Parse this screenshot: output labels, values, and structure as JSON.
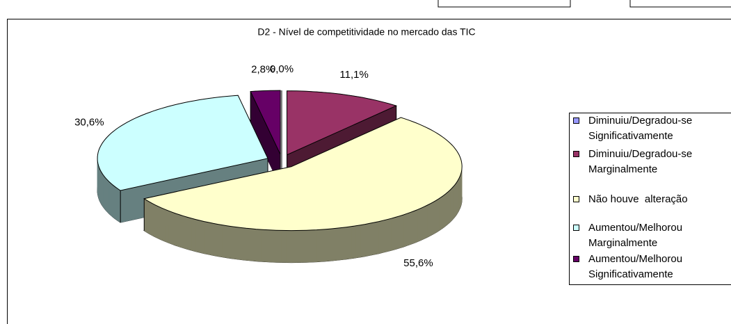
{
  "chart_data": {
    "type": "pie",
    "title": "D2 - Nível de competitividade no mercado  das TIC",
    "categories": [
      "Diminuiu/Degradou-se Significativamente",
      "Diminuiu/Degradou-se Marginalmente",
      "Não houve  alteração",
      "Aumentou/Melhorou Marginalmente",
      "Aumentou/Melhorou Significativamente"
    ],
    "values": [
      0.0,
      11.1,
      55.6,
      30.6,
      2.8
    ],
    "value_labels": [
      "0,0%",
      "11,1%",
      "55,6%",
      "30,6%",
      "2,8%"
    ],
    "colors": [
      "#9999ff",
      "#993366",
      "#ffffcc",
      "#ccffff",
      "#660066"
    ],
    "legend": "right"
  }
}
